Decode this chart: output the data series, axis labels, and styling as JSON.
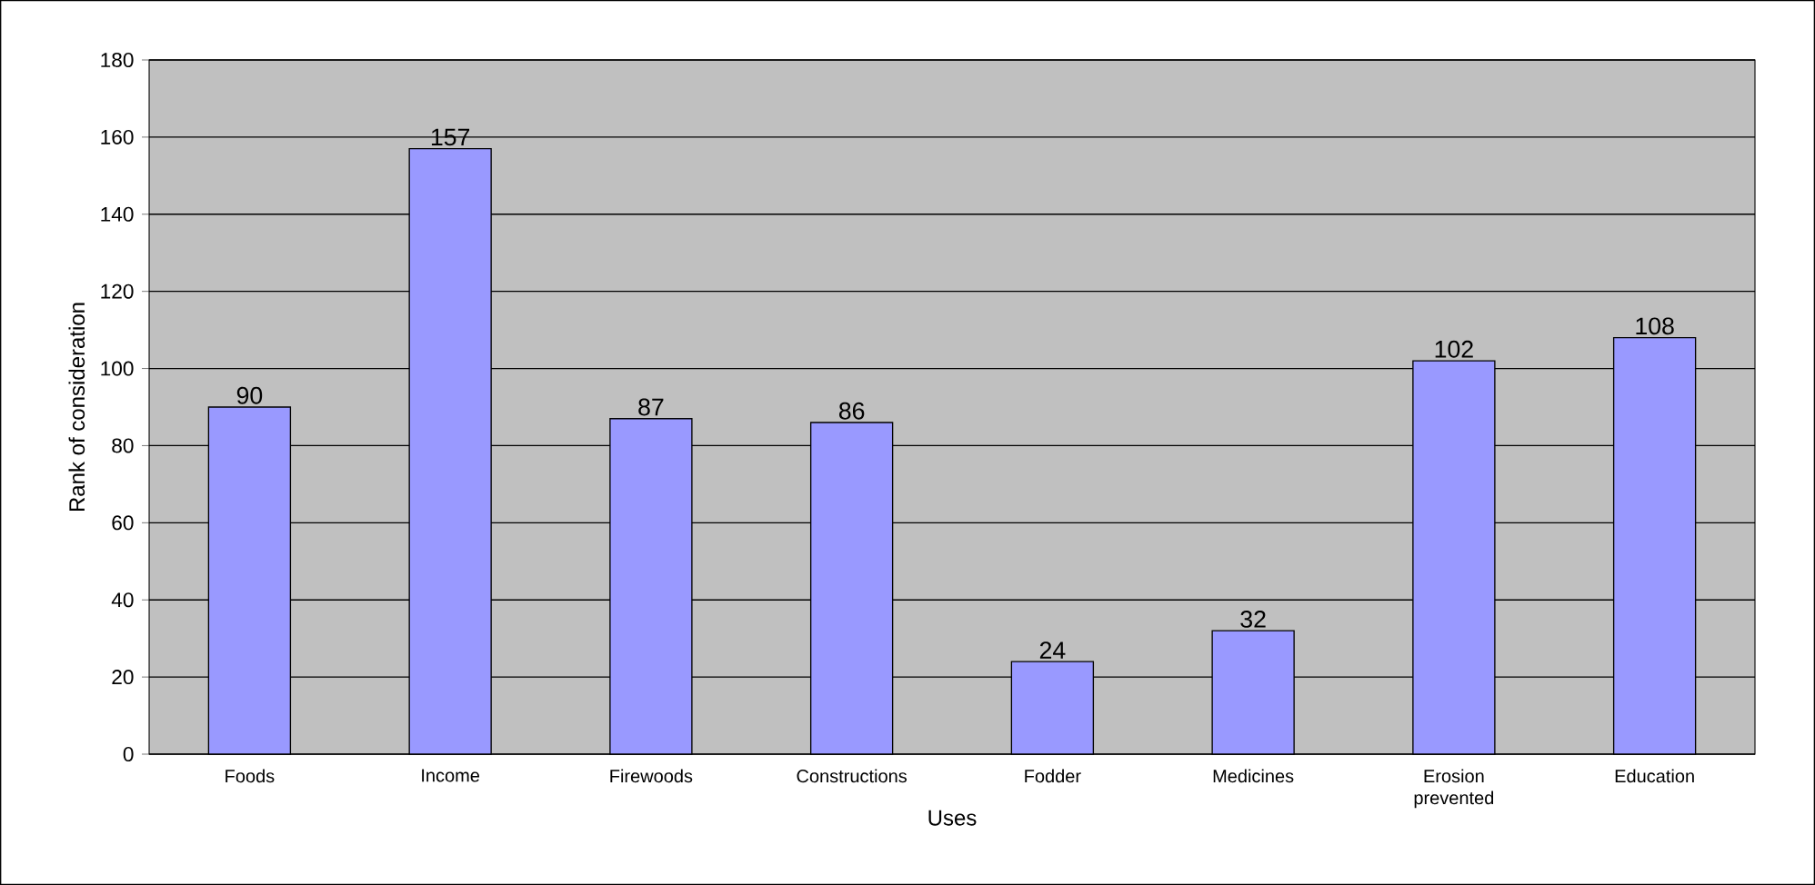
{
  "chart_data": {
    "type": "bar",
    "xlabel": "Uses",
    "ylabel": "Rank of consideration",
    "categories": [
      "Foods",
      "Income",
      "Firewoods",
      "Constructions",
      "Fodder",
      "Medicines",
      "Erosion prevented",
      "Education"
    ],
    "values": [
      90,
      157,
      87,
      86,
      24,
      32,
      102,
      108
    ],
    "color": "#9999ff",
    "ylim": [
      0,
      180
    ],
    "yticks": [
      0,
      20,
      40,
      60,
      80,
      100,
      120,
      140,
      160,
      180
    ],
    "grid": "y",
    "data_labels": true
  }
}
